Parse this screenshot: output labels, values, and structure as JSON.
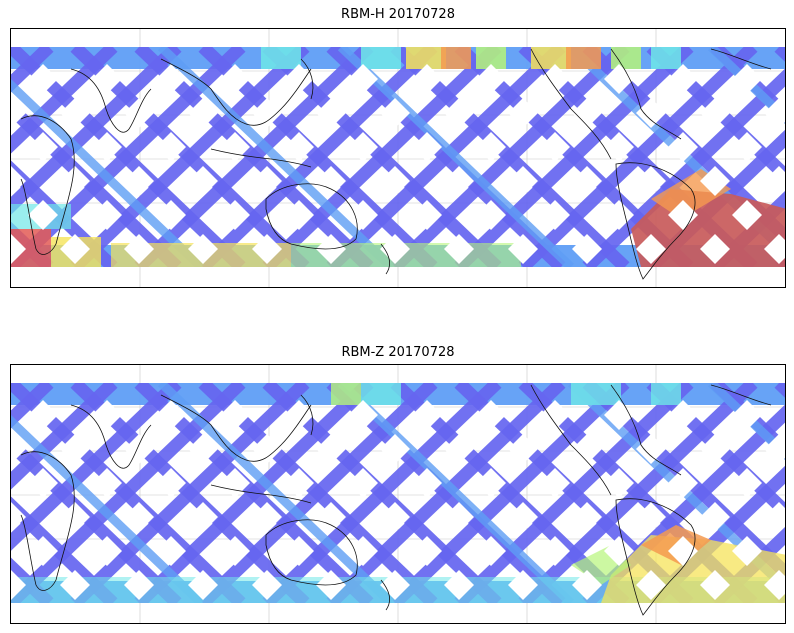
{
  "figure": {
    "panels": [
      {
        "title": "RBM-H 20170728",
        "colors": {
          "base": "#6666f0",
          "mid": "#5f9ef5",
          "cyan": "#6fe7e7",
          "green": "#b6f57a",
          "yellow": "#f5e35a",
          "orange": "#f59a50",
          "red": "#e35a55",
          "darkred": "#c85a5a"
        }
      },
      {
        "title": "RBM-Z 20170728",
        "colors": {
          "base": "#6666f0",
          "mid": "#5f9ef5",
          "cyan": "#6fe7e7",
          "green": "#b6f57a",
          "yellow": "#f5e35a",
          "orange": "#f59a50",
          "red": "#e35a55",
          "darkred": "#d86a5a"
        }
      }
    ]
  }
}
